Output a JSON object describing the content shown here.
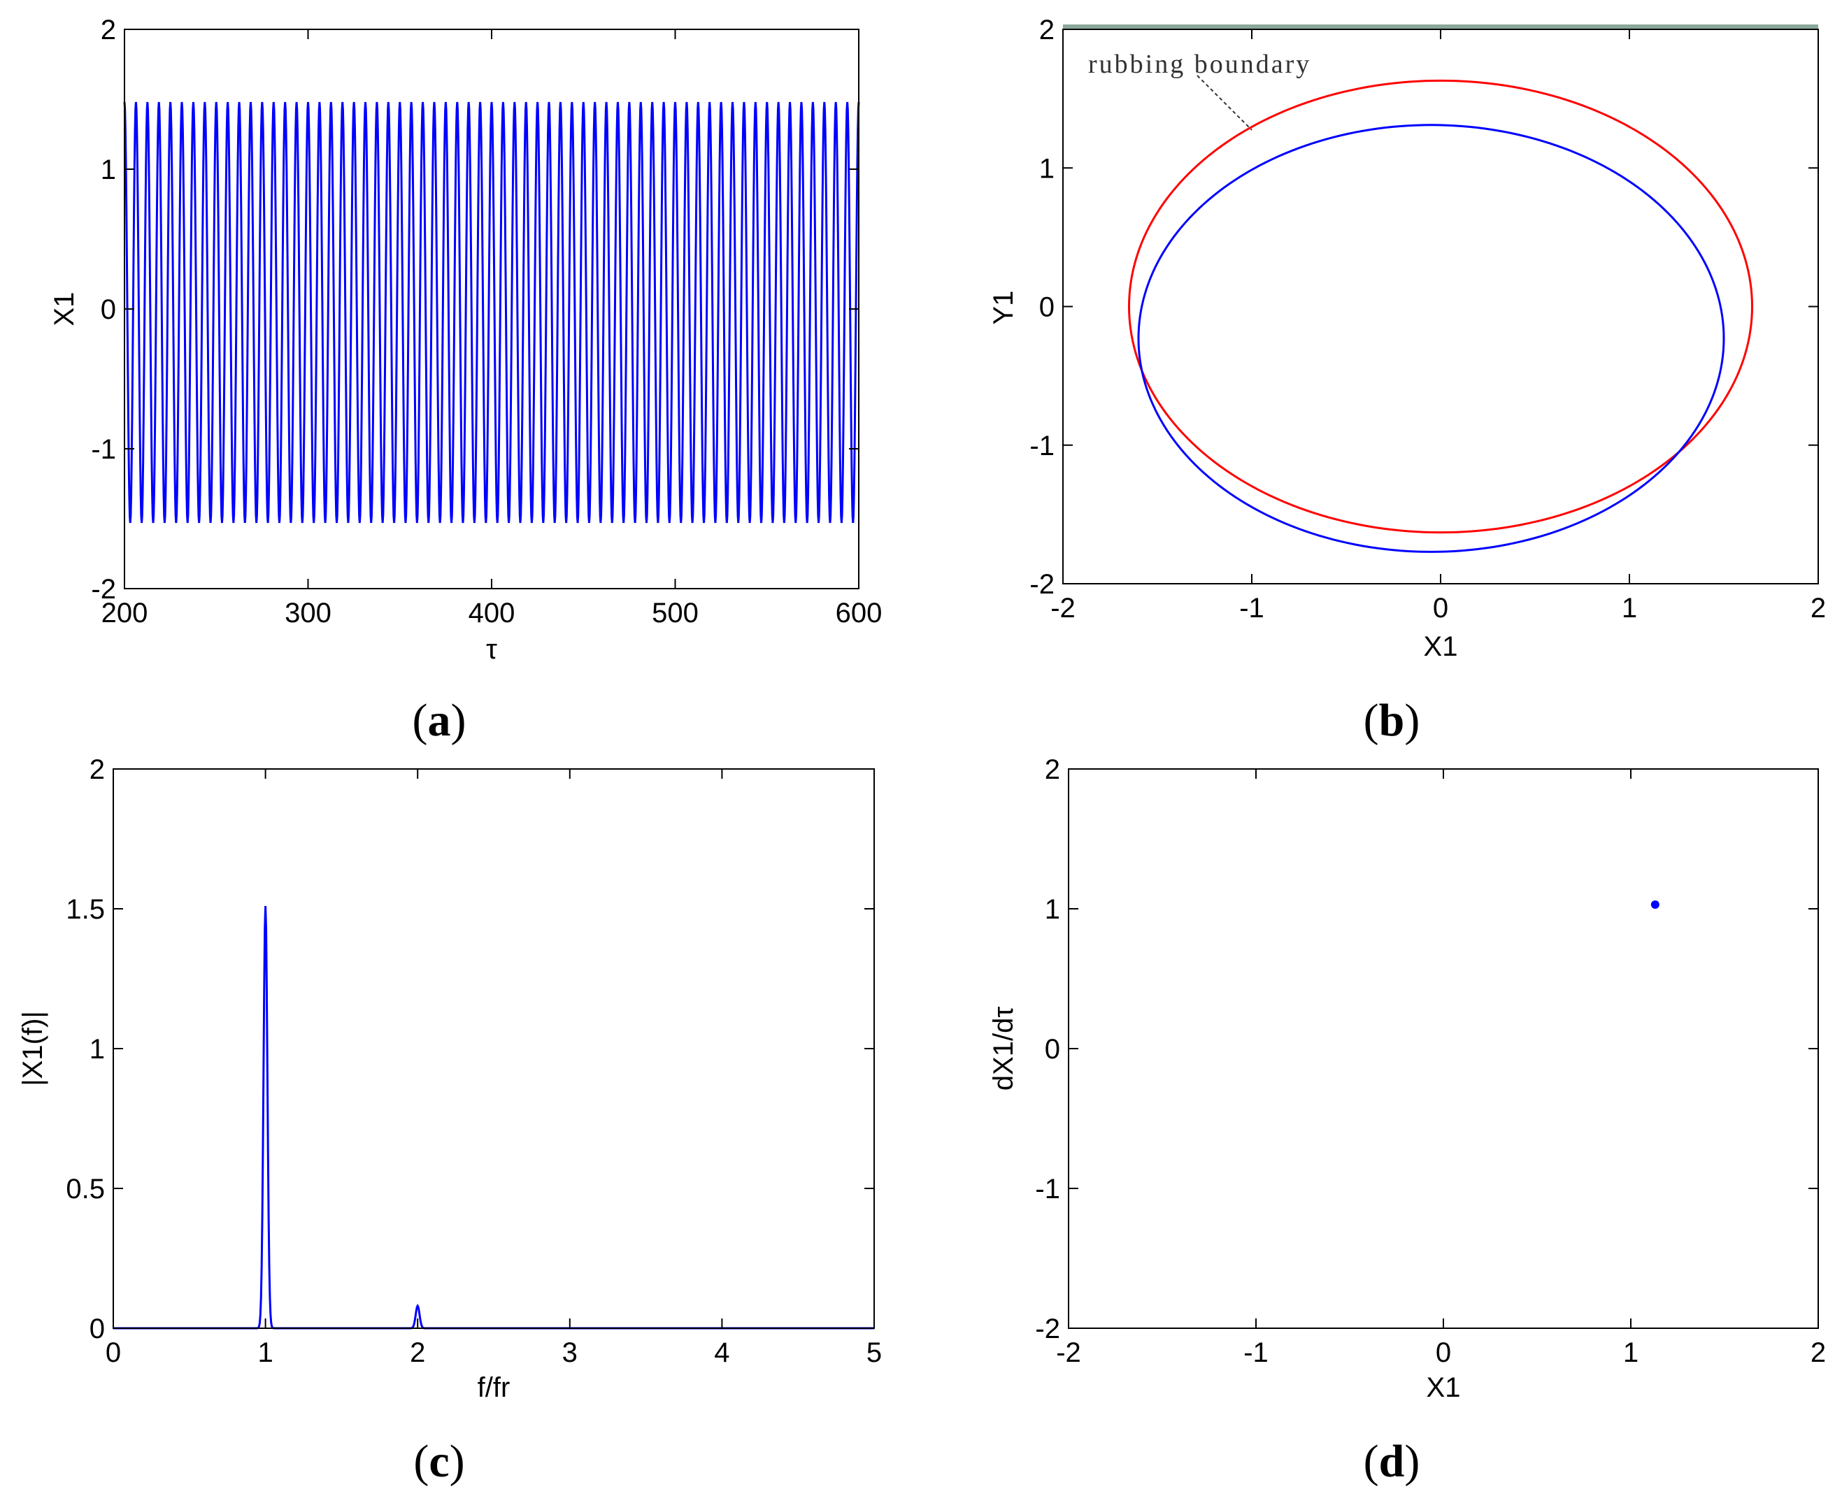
{
  "figure": {
    "panel_labels": [
      {
        "open": "(",
        "letter": "a",
        "close": ")"
      },
      {
        "open": "(",
        "letter": "b",
        "close": ")"
      },
      {
        "open": "(",
        "letter": "c",
        "close": ")"
      },
      {
        "open": "(",
        "letter": "d",
        "close": ")"
      }
    ]
  },
  "chart_data": [
    {
      "panel": "a",
      "type": "line",
      "xlabel": "τ",
      "ylabel": "X1",
      "xlim": [
        200,
        600
      ],
      "ylim": [
        -2,
        2
      ],
      "xticks": [
        200,
        300,
        400,
        500,
        600
      ],
      "yticks": [
        -2,
        -1,
        0,
        1,
        2
      ],
      "grid": false,
      "series": [
        {
          "color": "#0000ff",
          "signal": "sinusoid",
          "max": 1.48,
          "min": -1.53,
          "cycles": 64,
          "x_start": 200,
          "x_end": 600
        }
      ]
    },
    {
      "panel": "b",
      "type": "line",
      "xlabel": "X1",
      "ylabel": "Y1",
      "xlim": [
        -2,
        2
      ],
      "ylim": [
        -2,
        2
      ],
      "xticks": [
        -2,
        -1,
        0,
        1,
        2
      ],
      "yticks": [
        -2,
        -1,
        0,
        1,
        2
      ],
      "grid": false,
      "annotation": "rubbing boundary",
      "series": [
        {
          "color": "#ff0000",
          "shape": "ellipse",
          "center": [
            0,
            0
          ],
          "x_radius": 1.65,
          "y_radius": 1.63
        },
        {
          "color": "#0000ff",
          "shape": "ellipse",
          "center": [
            -0.05,
            -0.23
          ],
          "x_radius": 1.55,
          "y_radius": 1.54
        }
      ]
    },
    {
      "panel": "c",
      "type": "line",
      "xlabel": "f/fr",
      "ylabel": "|X1(f)|",
      "xlim": [
        0,
        5
      ],
      "ylim": [
        0,
        2
      ],
      "xticks": [
        0,
        1,
        2,
        3,
        4,
        5
      ],
      "yticks": [
        0,
        0.5,
        1,
        1.5,
        2
      ],
      "ytick_labels": [
        "0",
        "0.5",
        "1",
        "1.5",
        "2"
      ],
      "grid": false,
      "series": [
        {
          "color": "#0000ff",
          "peaks": [
            {
              "x": 1.0,
              "y": 1.51
            },
            {
              "x": 2.0,
              "y": 0.08
            }
          ]
        }
      ]
    },
    {
      "panel": "d",
      "type": "scatter",
      "xlabel": "X1",
      "ylabel": "dX1/dτ",
      "xlim": [
        -2,
        2
      ],
      "ylim": [
        -2,
        2
      ],
      "xticks": [
        -2,
        -1,
        0,
        1,
        2
      ],
      "yticks": [
        -2,
        -1,
        0,
        1,
        2
      ],
      "grid": false,
      "series": [
        {
          "color": "#0000ff",
          "x": [
            1.13
          ],
          "y": [
            1.03
          ]
        }
      ]
    }
  ]
}
